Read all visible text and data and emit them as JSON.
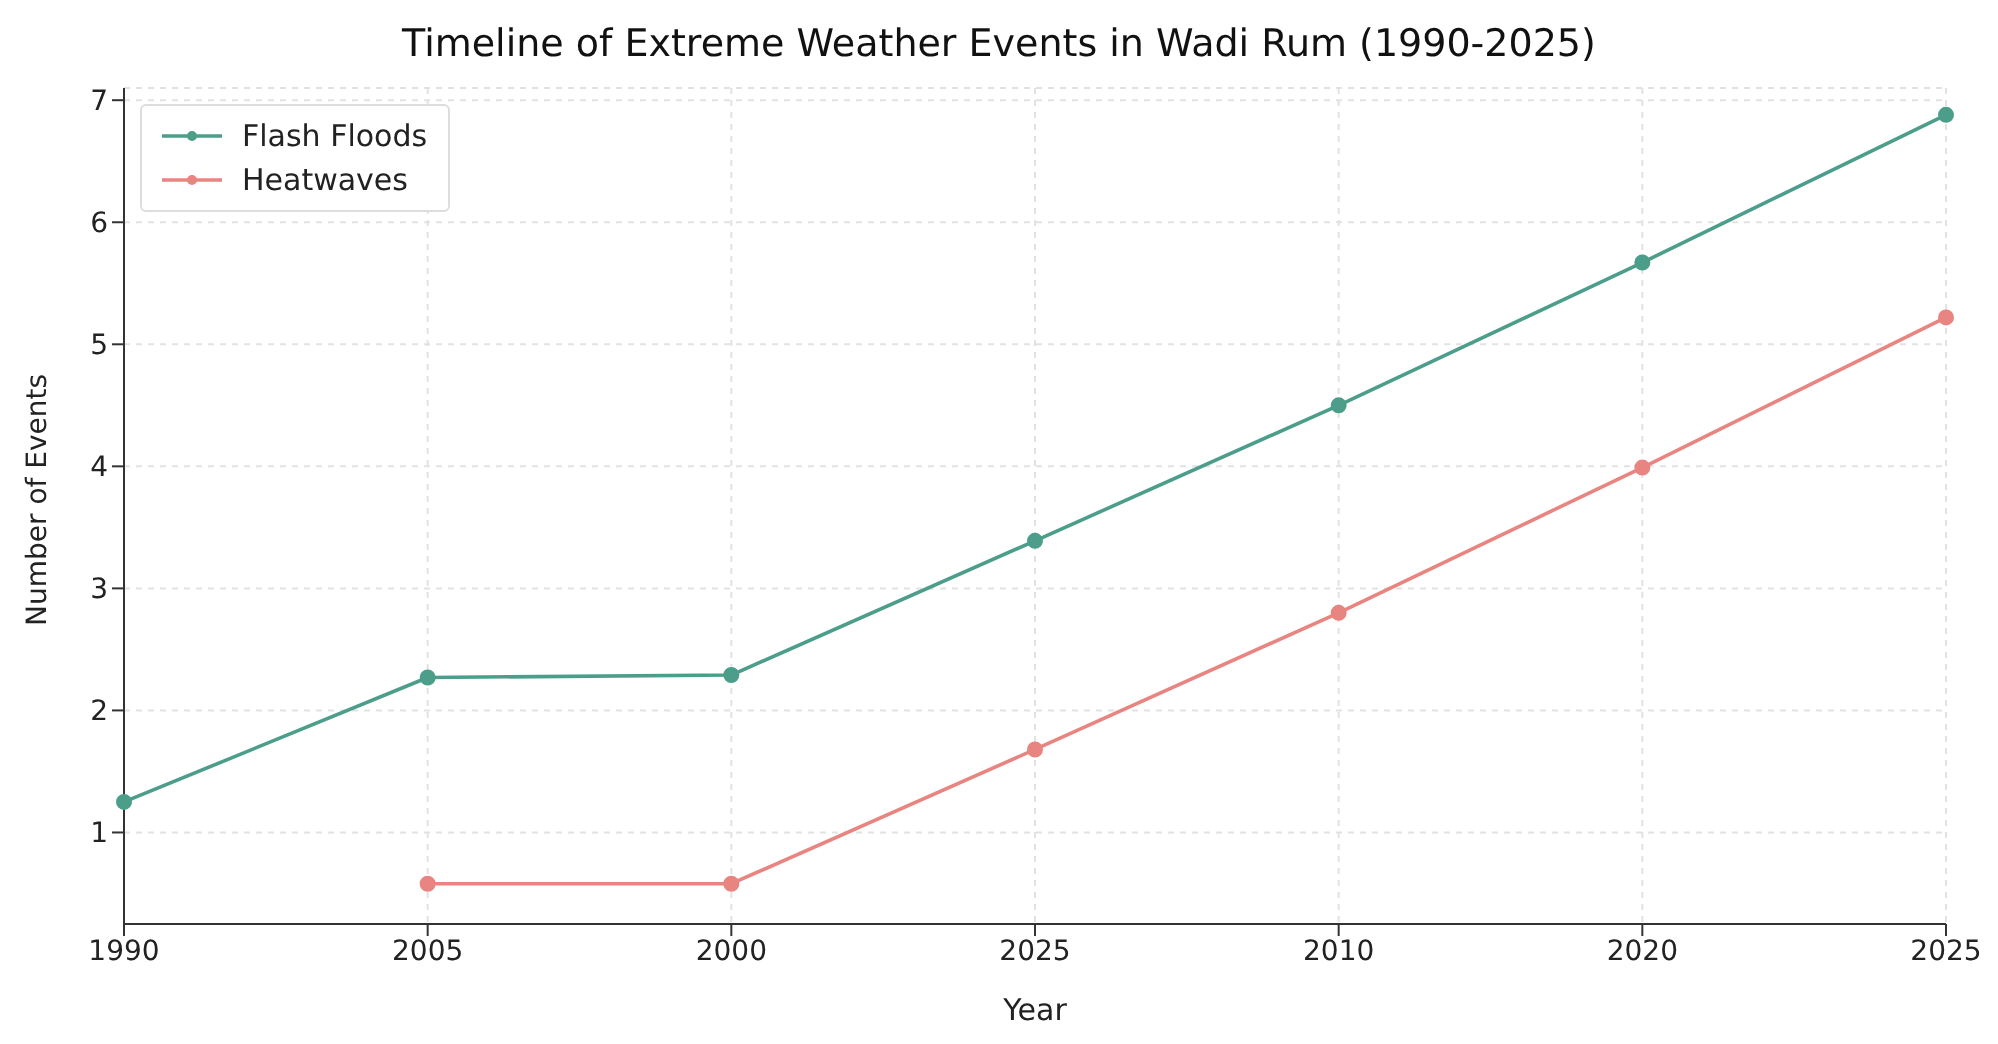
{
  "chart_data": {
    "type": "line",
    "title": "Timeline of Extreme Weather Events in Wadi Rum (1990-2025)",
    "xlabel": "Year",
    "ylabel": "Number of Events",
    "categories": [
      "1990",
      "2005",
      "2000",
      "2025",
      "2010",
      "2020",
      "2025"
    ],
    "series": [
      {
        "name": "Flash Floods",
        "color": "#4c9e8b",
        "values": [
          1.25,
          2.27,
          2.29,
          3.39,
          4.5,
          5.67,
          6.88
        ]
      },
      {
        "name": "Heatwaves",
        "color": "#e88580",
        "values": [
          null,
          0.58,
          0.58,
          1.68,
          2.8,
          3.99,
          5.22
        ]
      }
    ],
    "ylim": [
      0.25,
      7.1
    ],
    "yticks": [
      1,
      2,
      3,
      4,
      5,
      6,
      7
    ],
    "grid": true,
    "legend": "top left",
    "marker": "circle",
    "line_style": "solid"
  }
}
